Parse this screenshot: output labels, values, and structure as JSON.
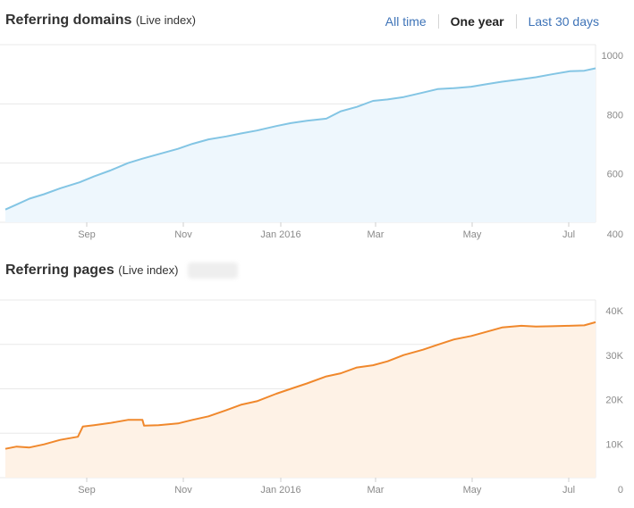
{
  "header": {
    "domains_title": "Referring domains",
    "domains_sub": "(Live index)",
    "pages_title": "Referring pages",
    "pages_sub": "(Live index)"
  },
  "range_tabs": [
    {
      "label": "All time",
      "active": false
    },
    {
      "label": "One year",
      "active": true
    },
    {
      "label": "Last 30 days",
      "active": false
    }
  ],
  "colors": {
    "domains_line": "#83c5e4",
    "domains_fill": "#eef7fd",
    "pages_line": "#f0882c",
    "pages_fill": "#fef2e6",
    "grid": "#e8e8e8",
    "link": "#3f74b8"
  },
  "chart_data": [
    {
      "type": "area",
      "title": "Referring domains",
      "x_ticks": [
        "Sep",
        "Nov",
        "Jan 2016",
        "Mar",
        "May",
        "Jul"
      ],
      "ylim": [
        400,
        1000
      ],
      "y_ticks": [
        400,
        600,
        800,
        1000
      ],
      "y_tick_labels": [
        "400",
        "600",
        "800",
        "1000"
      ],
      "grid": true,
      "series": [
        {
          "x": [
            "2015-07-17",
            "2015-07-24",
            "2015-08-01",
            "2015-08-10",
            "2015-08-20",
            "2015-09-01",
            "2015-09-10",
            "2015-09-20",
            "2015-10-01",
            "2015-10-10",
            "2015-10-20",
            "2015-11-01",
            "2015-11-10",
            "2015-11-20",
            "2015-12-01",
            "2015-12-10",
            "2015-12-20",
            "2016-01-01",
            "2016-01-10",
            "2016-01-20",
            "2016-02-01",
            "2016-02-10",
            "2016-02-20",
            "2016-03-01",
            "2016-03-10",
            "2016-03-20",
            "2016-04-01",
            "2016-04-10",
            "2016-04-20",
            "2016-05-01",
            "2016-05-10",
            "2016-05-20",
            "2016-06-01",
            "2016-06-10",
            "2016-06-20",
            "2016-07-01",
            "2016-07-10",
            "2016-07-17"
          ],
          "values": [
            443,
            460,
            480,
            495,
            515,
            535,
            555,
            575,
            600,
            615,
            630,
            648,
            665,
            680,
            690,
            700,
            710,
            725,
            735,
            743,
            750,
            775,
            790,
            810,
            815,
            823,
            838,
            850,
            853,
            858,
            866,
            875,
            883,
            890,
            900,
            910,
            912,
            920
          ]
        }
      ]
    },
    {
      "type": "area",
      "title": "Referring pages",
      "x_ticks": [
        "Sep",
        "Nov",
        "Jan 2016",
        "Mar",
        "May",
        "Jul"
      ],
      "ylim": [
        0,
        40000
      ],
      "y_ticks": [
        0,
        10000,
        20000,
        30000,
        40000
      ],
      "y_tick_labels": [
        "0",
        "10K",
        "20K",
        "30K",
        "40K"
      ],
      "grid": true,
      "series": [
        {
          "x": [
            "2015-07-17",
            "2015-07-24",
            "2015-08-01",
            "2015-08-10",
            "2015-08-20",
            "2015-08-31",
            "2015-09-03",
            "2015-09-10",
            "2015-09-20",
            "2015-10-01",
            "2015-10-10",
            "2015-10-11",
            "2015-10-20",
            "2015-11-01",
            "2015-11-10",
            "2015-11-20",
            "2015-12-01",
            "2015-12-10",
            "2015-12-20",
            "2016-01-01",
            "2016-01-10",
            "2016-01-20",
            "2016-02-01",
            "2016-02-10",
            "2016-02-20",
            "2016-03-01",
            "2016-03-10",
            "2016-03-20",
            "2016-04-01",
            "2016-04-10",
            "2016-04-20",
            "2016-05-01",
            "2016-05-10",
            "2016-05-20",
            "2016-06-01",
            "2016-06-10",
            "2016-06-20",
            "2016-07-01",
            "2016-07-10",
            "2016-07-17"
          ],
          "values": [
            6500,
            7000,
            6800,
            7500,
            8500,
            9200,
            11500,
            11800,
            12300,
            13000,
            13000,
            11700,
            11800,
            12200,
            13000,
            13800,
            15200,
            16400,
            17200,
            18900,
            20000,
            21200,
            22800,
            23500,
            24800,
            25300,
            26200,
            27600,
            28800,
            29900,
            31100,
            31900,
            32800,
            33800,
            34200,
            34000,
            34100,
            34200,
            34300,
            35000
          ]
        }
      ]
    }
  ]
}
